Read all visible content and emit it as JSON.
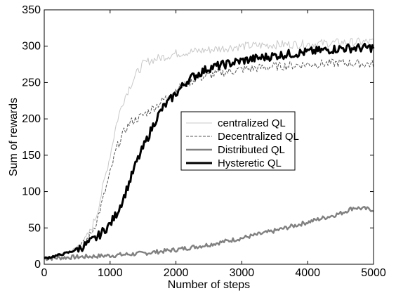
{
  "chart_data": {
    "type": "line",
    "title": "",
    "xlabel": "Number of steps",
    "ylabel": "Sum of rewards",
    "xlim": [
      0,
      5000
    ],
    "ylim": [
      0,
      350
    ],
    "xticks": [
      "0",
      "1000",
      "2000",
      "3000",
      "4000",
      "5000"
    ],
    "yticks": [
      "0",
      "50",
      "100",
      "150",
      "200",
      "250",
      "300",
      "350"
    ],
    "grid": false,
    "legend_position": "center-right",
    "series": [
      {
        "name": "centralized QL",
        "color": "#c8c8c8",
        "style": "solid",
        "x": [
          0,
          200,
          400,
          600,
          700,
          800,
          900,
          1000,
          1100,
          1200,
          1300,
          1400,
          1500,
          1600,
          1800,
          2000,
          2200,
          2500,
          3000,
          3500,
          4000,
          4500,
          5000
        ],
        "y": [
          8,
          12,
          18,
          30,
          45,
          70,
          110,
          150,
          195,
          225,
          245,
          262,
          275,
          280,
          285,
          290,
          292,
          295,
          300,
          302,
          303,
          305,
          306
        ]
      },
      {
        "name": "Decentralized QL",
        "color": "#555555",
        "style": "dashed",
        "x": [
          0,
          200,
          400,
          600,
          700,
          800,
          900,
          1000,
          1100,
          1200,
          1300,
          1400,
          1500,
          1700,
          2000,
          2300,
          2600,
          3000,
          3500,
          4000,
          4500,
          5000
        ],
        "y": [
          8,
          12,
          18,
          28,
          40,
          60,
          92,
          125,
          160,
          180,
          195,
          200,
          205,
          218,
          240,
          255,
          262,
          268,
          272,
          275,
          277,
          275
        ]
      },
      {
        "name": "Distributed QL",
        "color": "#808080",
        "style": "solid",
        "x": [
          0,
          500,
          1000,
          1500,
          2000,
          2500,
          3000,
          3500,
          4000,
          4500,
          4700,
          5000
        ],
        "y": [
          8,
          10,
          12,
          15,
          20,
          27,
          36,
          46,
          58,
          70,
          78,
          75
        ]
      },
      {
        "name": "Hysteretic QL",
        "color": "#000000",
        "style": "solid",
        "x": [
          0,
          200,
          400,
          600,
          800,
          1000,
          1100,
          1200,
          1300,
          1400,
          1500,
          1600,
          1700,
          1800,
          2000,
          2200,
          2500,
          3000,
          3500,
          4000,
          4500,
          5000
        ],
        "y": [
          8,
          12,
          17,
          25,
          37,
          55,
          70,
          90,
          115,
          140,
          160,
          180,
          200,
          215,
          235,
          255,
          270,
          280,
          287,
          292,
          297,
          298
        ]
      }
    ]
  }
}
